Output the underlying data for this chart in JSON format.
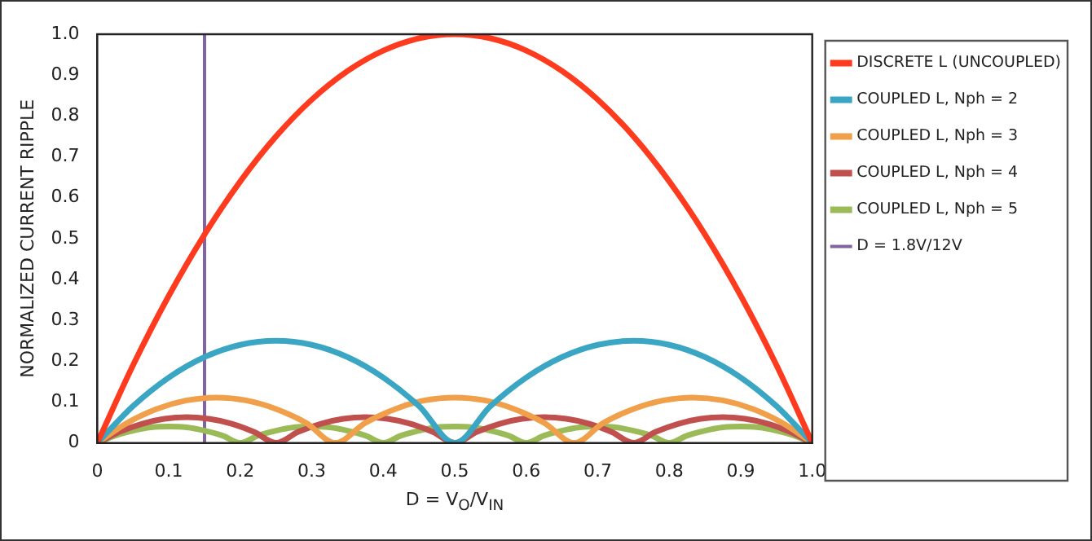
{
  "chart_data": {
    "type": "line",
    "xlabel": "D = V$_{O}$/V$_{IN}$",
    "ylabel": "NORMALIZED CURRENT RIPPLE",
    "xlim": [
      0,
      1
    ],
    "xticks": [
      0,
      0.1,
      0.2,
      0.3,
      0.4,
      0.5,
      0.6,
      0.7,
      0.8,
      0.9,
      {
        "value": 1,
        "label": "1.0"
      }
    ],
    "ylim": [
      0,
      1
    ],
    "yticks": [
      0,
      0.1,
      0.2,
      0.3,
      0.4,
      0.5,
      0.6,
      0.7,
      0.8,
      0.9,
      {
        "value": 1,
        "label": "1.0"
      }
    ],
    "grid": false,
    "legend": "right",
    "marker": "none",
    "line_style": "solid",
    "series": [
      {
        "name": "DISCRETE L (UNCOUPLED)",
        "color": "#ff3b1f",
        "x": [
          0,
          0.05,
          0.1,
          0.15,
          0.2,
          0.25,
          0.3,
          0.35,
          0.4,
          0.45,
          0.5,
          0.55,
          0.6,
          0.65,
          0.7,
          0.75,
          0.8,
          0.85,
          0.9,
          0.95,
          1
        ],
        "values": [
          0,
          0.19,
          0.36,
          0.51,
          0.64,
          0.75,
          0.84,
          0.91,
          0.96,
          0.99,
          1,
          0.99,
          0.96,
          0.91,
          0.84,
          0.75,
          0.64,
          0.51,
          0.36,
          0.19,
          0
        ]
      },
      {
        "name": "COUPLED L, Nph = 2",
        "color": "#3aa6c4",
        "x": [
          0,
          0.05,
          0.1,
          0.15,
          0.2,
          0.25,
          0.3,
          0.35,
          0.4,
          0.45,
          0.5,
          0.55,
          0.6,
          0.65,
          0.7,
          0.75,
          0.8,
          0.85,
          0.9,
          0.95,
          1
        ],
        "values": [
          0,
          0.09,
          0.16,
          0.21,
          0.24,
          0.25,
          0.24,
          0.21,
          0.16,
          0.09,
          0,
          0.09,
          0.16,
          0.21,
          0.24,
          0.25,
          0.24,
          0.21,
          0.16,
          0.09,
          0
        ]
      },
      {
        "name": "COUPLED L, Nph = 3",
        "color": "#f0a04b",
        "x": [
          0,
          0.042,
          0.083,
          0.125,
          0.167,
          0.208,
          0.25,
          0.292,
          0.333,
          0.375,
          0.417,
          0.458,
          0.5,
          0.542,
          0.583,
          0.625,
          0.667,
          0.708,
          0.75,
          0.792,
          0.833,
          0.875,
          0.917,
          0.958,
          1
        ],
        "values": [
          0,
          0.049,
          0.083,
          0.104,
          0.111,
          0.104,
          0.083,
          0.049,
          0,
          0.049,
          0.083,
          0.104,
          0.111,
          0.104,
          0.083,
          0.049,
          0,
          0.049,
          0.083,
          0.104,
          0.111,
          0.104,
          0.083,
          0.049,
          0
        ]
      },
      {
        "name": "COUPLED L, Nph = 4",
        "color": "#c0504d",
        "x": [
          0,
          0.031,
          0.063,
          0.094,
          0.125,
          0.156,
          0.188,
          0.219,
          0.25,
          0.281,
          0.313,
          0.344,
          0.375,
          0.406,
          0.438,
          0.469,
          0.5,
          0.531,
          0.563,
          0.594,
          0.625,
          0.656,
          0.688,
          0.719,
          0.75,
          0.781,
          0.813,
          0.844,
          0.875,
          0.906,
          0.938,
          0.969,
          1
        ],
        "values": [
          0,
          0.027,
          0.047,
          0.059,
          0.063,
          0.059,
          0.047,
          0.027,
          0,
          0.027,
          0.047,
          0.059,
          0.063,
          0.059,
          0.047,
          0.027,
          0,
          0.027,
          0.047,
          0.059,
          0.063,
          0.059,
          0.047,
          0.027,
          0,
          0.027,
          0.047,
          0.059,
          0.063,
          0.059,
          0.047,
          0.027,
          0
        ]
      },
      {
        "name": "COUPLED L, Nph = 5",
        "color": "#9bbb59",
        "x": [
          0,
          0.025,
          0.05,
          0.075,
          0.1,
          0.125,
          0.15,
          0.175,
          0.2,
          0.225,
          0.25,
          0.275,
          0.3,
          0.325,
          0.35,
          0.375,
          0.4,
          0.425,
          0.45,
          0.475,
          0.5,
          0.525,
          0.55,
          0.575,
          0.6,
          0.625,
          0.65,
          0.675,
          0.7,
          0.725,
          0.75,
          0.775,
          0.8,
          0.825,
          0.85,
          0.875,
          0.9,
          0.925,
          0.95,
          0.975,
          1
        ],
        "values": [
          0,
          0.018,
          0.03,
          0.038,
          0.04,
          0.038,
          0.03,
          0.018,
          0,
          0.018,
          0.03,
          0.038,
          0.04,
          0.038,
          0.03,
          0.018,
          0,
          0.018,
          0.03,
          0.038,
          0.04,
          0.038,
          0.03,
          0.018,
          0,
          0.018,
          0.03,
          0.038,
          0.04,
          0.038,
          0.03,
          0.018,
          0,
          0.018,
          0.03,
          0.038,
          0.04,
          0.038,
          0.03,
          0.018,
          0
        ]
      },
      {
        "name": "D = 1.8V/12V",
        "color": "#8064a2",
        "x": [
          0.15,
          0.15
        ],
        "values": [
          0,
          1
        ]
      }
    ]
  }
}
